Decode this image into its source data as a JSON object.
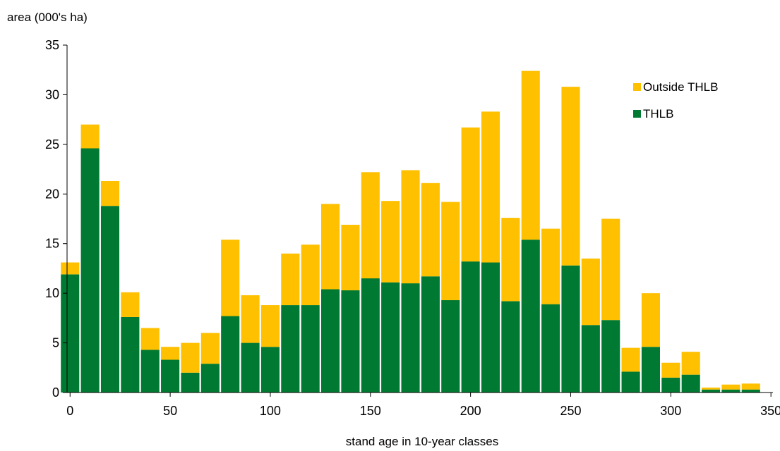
{
  "chart_data": {
    "type": "bar",
    "stacked": true,
    "title": "",
    "ylabel": "area (000's ha)",
    "xlabel": "stand age in 10-year classes",
    "ylim": [
      0,
      35
    ],
    "xlim": [
      -1.5,
      351
    ],
    "yticks": [
      0,
      5,
      10,
      15,
      20,
      25,
      30,
      35
    ],
    "xticks": [
      0,
      50,
      100,
      150,
      200,
      250,
      300,
      350
    ],
    "grid": false,
    "legend_position": "top-right",
    "x": [
      0,
      10,
      20,
      30,
      40,
      50,
      60,
      70,
      80,
      90,
      100,
      110,
      120,
      130,
      140,
      150,
      160,
      170,
      180,
      190,
      200,
      210,
      220,
      230,
      240,
      250,
      260,
      270,
      280,
      290,
      300,
      310,
      320,
      330,
      340
    ],
    "series": [
      {
        "name": "THLB",
        "color": "#007A33",
        "values": [
          11.9,
          24.6,
          18.8,
          7.6,
          4.3,
          3.3,
          2.0,
          2.9,
          7.7,
          5.0,
          4.6,
          8.8,
          8.8,
          10.4,
          10.3,
          11.5,
          11.1,
          11.0,
          11.7,
          9.3,
          13.2,
          13.1,
          9.2,
          15.4,
          8.9,
          12.8,
          6.8,
          7.3,
          2.1,
          4.6,
          1.5,
          1.8,
          0.3,
          0.3,
          0.3
        ]
      },
      {
        "name": "Outside THLB",
        "color": "#FFC000",
        "values": [
          1.2,
          2.4,
          2.5,
          2.5,
          2.2,
          1.3,
          3.0,
          3.1,
          7.7,
          4.8,
          4.2,
          5.2,
          6.1,
          8.6,
          6.6,
          10.7,
          8.2,
          11.4,
          9.4,
          9.9,
          13.5,
          15.2,
          8.4,
          17.0,
          7.6,
          18.0,
          6.7,
          10.2,
          2.4,
          5.4,
          1.5,
          2.3,
          0.2,
          0.5,
          0.6
        ]
      }
    ]
  }
}
